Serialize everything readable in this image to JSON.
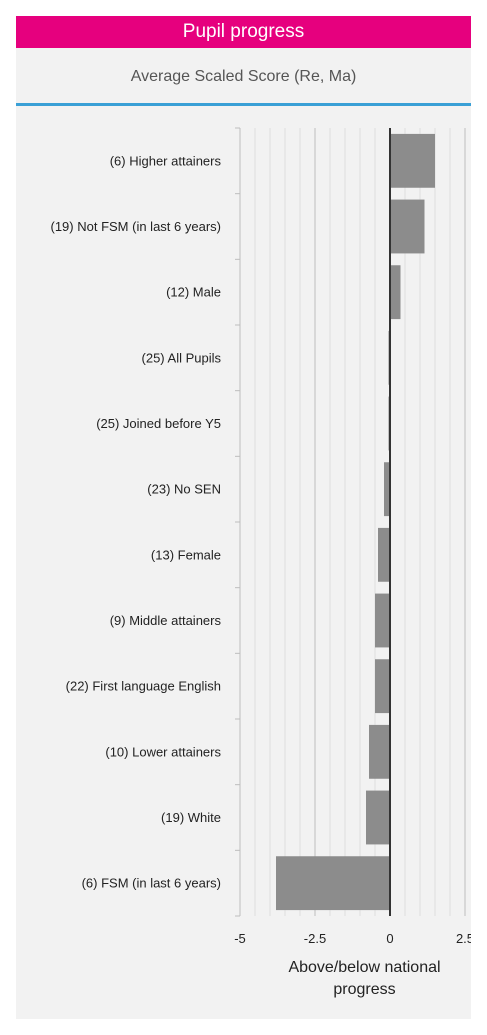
{
  "header": {
    "title": "Pupil progress"
  },
  "subheader": {
    "title": "Average Scaled Score (Re, Ma)"
  },
  "chart_data": {
    "type": "bar",
    "orientation": "horizontal",
    "categories": [
      "(6) Higher attainers",
      "(19) Not FSM (in last 6 years)",
      "(12) Male",
      "(25) All Pupils",
      "(25) Joined before Y5",
      "(23) No SEN",
      "(13) Female",
      "(9) Middle attainers",
      "(22) First language English",
      "(10) Lower attainers",
      "(19) White",
      "(6) FSM (in last 6 years)"
    ],
    "values": [
      1.5,
      1.15,
      0.35,
      -0.05,
      -0.05,
      -0.2,
      -0.4,
      -0.5,
      -0.5,
      -0.7,
      -0.8,
      -3.8
    ],
    "xlim": [
      -5,
      2.5
    ],
    "xticks": [
      -5,
      -2.5,
      0,
      2.5
    ],
    "xtick_labels": [
      "-5",
      "-2.5",
      "0",
      "2.5"
    ],
    "xlabel_lines": [
      "Above/below national",
      "progress"
    ],
    "bar_color": "#8c8c8c",
    "grid": true
  },
  "colors": {
    "accent": "#e6007e",
    "rule": "#3aa0d6",
    "panel": "#f2f2f2"
  }
}
